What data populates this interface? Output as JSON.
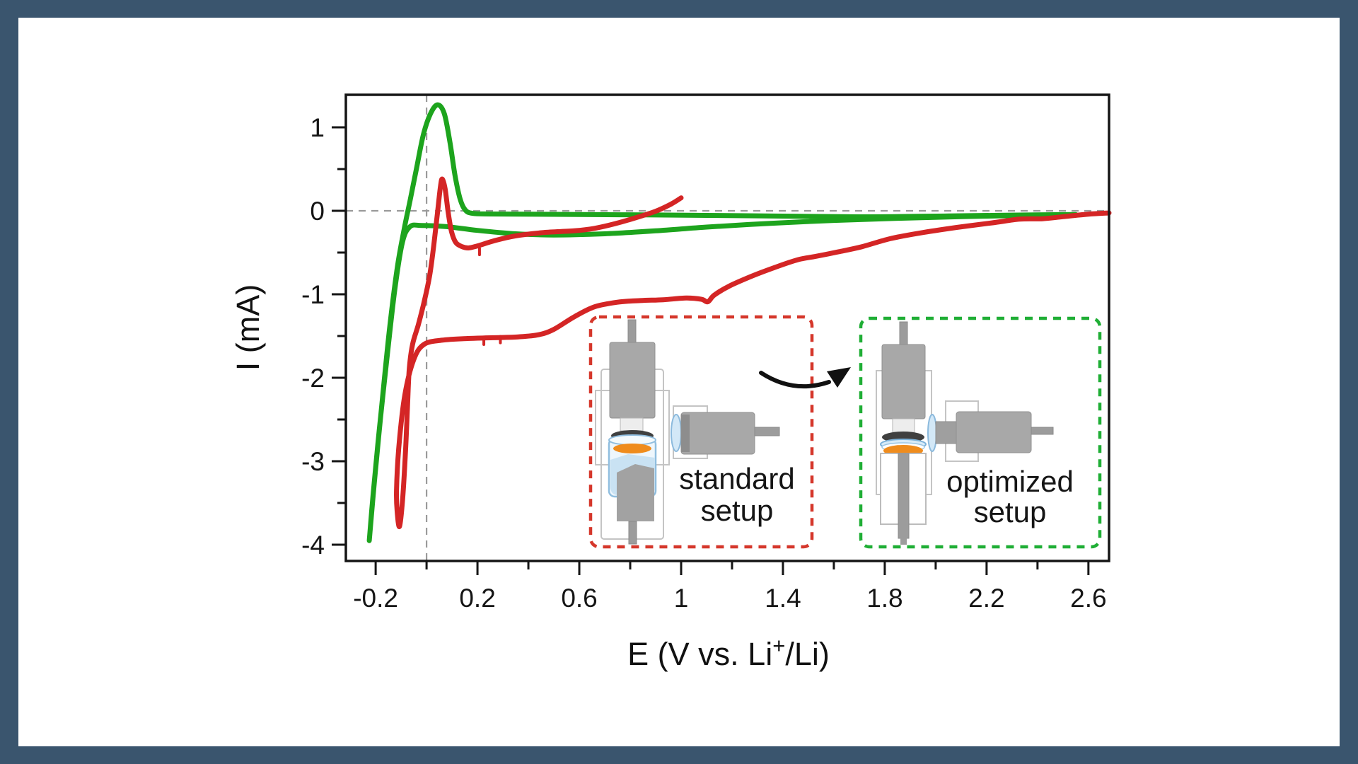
{
  "figure": {
    "frame_color": "#3a556e",
    "background": "#ffffff",
    "ylabel": "I (mA)",
    "xlabel_prefix": "E (V vs. Li",
    "xlabel_sup": "+",
    "xlabel_suffix": "/Li)"
  },
  "chart_data": {
    "type": "line",
    "title": "",
    "xlabel": "E (V vs. Li+/Li)",
    "ylabel": "I (mA)",
    "grid": "zero-lines only (dashed gray at E=0 and I=0)",
    "legend_position": "none (insets with dashed boxes act as legend)",
    "x_axis": {
      "min": -0.317,
      "max": 2.681,
      "major_ticks": [
        {
          "v": -0.2,
          "label": "-0.2"
        },
        {
          "v": 0.2,
          "label": "0.2"
        },
        {
          "v": 0.6,
          "label": "0.6"
        },
        {
          "v": 1.0,
          "label": "1"
        },
        {
          "v": 1.4,
          "label": "1.4"
        },
        {
          "v": 1.8,
          "label": "1.8"
        },
        {
          "v": 2.2,
          "label": "2.2"
        },
        {
          "v": 2.6,
          "label": "2.6"
        }
      ],
      "minor_ticks": [
        0.0,
        0.4,
        0.8,
        1.2,
        1.6,
        2.0,
        2.4
      ]
    },
    "y_axis": {
      "min": -4.195,
      "max": 1.39,
      "major_ticks": [
        {
          "v": 1,
          "label": "1"
        },
        {
          "v": 0,
          "label": "0"
        },
        {
          "v": -1,
          "label": "-1"
        },
        {
          "v": -2,
          "label": "-2"
        },
        {
          "v": -3,
          "label": "-3"
        },
        {
          "v": -4,
          "label": "-4"
        }
      ],
      "minor_ticks": [
        0.5,
        -0.5,
        -1.5,
        -2.5,
        -3.5
      ]
    },
    "zero_line_color": "#9a9a9a",
    "series": [
      {
        "name": "optimized setup",
        "color": "#1da41d",
        "points": [
          [
            2.55,
            -0.045
          ],
          [
            2.35,
            -0.055
          ],
          [
            2.1,
            -0.07
          ],
          [
            1.85,
            -0.09
          ],
          [
            1.6,
            -0.115
          ],
          [
            1.35,
            -0.15
          ],
          [
            1.1,
            -0.195
          ],
          [
            0.9,
            -0.24
          ],
          [
            0.7,
            -0.275
          ],
          [
            0.5,
            -0.29
          ],
          [
            0.35,
            -0.275
          ],
          [
            0.2,
            -0.235
          ],
          [
            0.08,
            -0.19
          ],
          [
            -0.02,
            -0.175
          ],
          [
            -0.065,
            -0.19
          ],
          [
            -0.095,
            -0.38
          ],
          [
            -0.125,
            -0.95
          ],
          [
            -0.155,
            -1.75
          ],
          [
            -0.185,
            -2.6
          ],
          [
            -0.21,
            -3.4
          ],
          [
            -0.225,
            -3.95
          ],
          [
            -0.205,
            -3.25
          ],
          [
            -0.175,
            -2.3
          ],
          [
            -0.145,
            -1.4
          ],
          [
            -0.115,
            -0.68
          ],
          [
            -0.088,
            -0.22
          ],
          [
            -0.065,
            0.12
          ],
          [
            -0.04,
            0.5
          ],
          [
            -0.012,
            0.92
          ],
          [
            0.018,
            1.18
          ],
          [
            0.045,
            1.27
          ],
          [
            0.07,
            1.16
          ],
          [
            0.092,
            0.82
          ],
          [
            0.112,
            0.42
          ],
          [
            0.132,
            0.14
          ],
          [
            0.152,
            0.01
          ],
          [
            0.18,
            -0.03
          ],
          [
            0.25,
            -0.038
          ],
          [
            0.5,
            -0.042
          ],
          [
            0.9,
            -0.05
          ],
          [
            1.3,
            -0.06
          ],
          [
            1.7,
            -0.072
          ],
          [
            2.05,
            -0.062
          ],
          [
            2.3,
            -0.052
          ],
          [
            2.55,
            -0.045
          ]
        ]
      },
      {
        "name": "standard setup",
        "color": "#d42525",
        "points": [
          [
            2.681,
            -0.025
          ],
          [
            2.6,
            -0.04
          ],
          [
            2.5,
            -0.07
          ],
          [
            2.42,
            -0.095
          ],
          [
            2.33,
            -0.1
          ],
          [
            2.22,
            -0.145
          ],
          [
            2.08,
            -0.2
          ],
          [
            1.94,
            -0.265
          ],
          [
            1.82,
            -0.335
          ],
          [
            1.71,
            -0.43
          ],
          [
            1.62,
            -0.49
          ],
          [
            1.53,
            -0.545
          ],
          [
            1.46,
            -0.585
          ],
          [
            1.38,
            -0.665
          ],
          [
            1.28,
            -0.78
          ],
          [
            1.19,
            -0.9
          ],
          [
            1.13,
            -1.01
          ],
          [
            1.105,
            -1.09
          ],
          [
            1.08,
            -1.06
          ],
          [
            1.02,
            -1.045
          ],
          [
            0.93,
            -1.065
          ],
          [
            0.84,
            -1.075
          ],
          [
            0.75,
            -1.095
          ],
          [
            0.66,
            -1.15
          ],
          [
            0.58,
            -1.27
          ],
          [
            0.5,
            -1.42
          ],
          [
            0.44,
            -1.485
          ],
          [
            0.36,
            -1.51
          ],
          [
            0.26,
            -1.52
          ],
          [
            0.16,
            -1.53
          ],
          [
            0.06,
            -1.55
          ],
          [
            -0.01,
            -1.6
          ],
          [
            -0.05,
            -1.78
          ],
          [
            -0.085,
            -2.2
          ],
          [
            -0.108,
            -2.8
          ],
          [
            -0.118,
            -3.35
          ],
          [
            -0.115,
            -3.62
          ],
          [
            -0.106,
            -3.78
          ],
          [
            -0.094,
            -3.45
          ],
          [
            -0.083,
            -2.9
          ],
          [
            -0.075,
            -2.35
          ],
          [
            -0.068,
            -1.9
          ],
          [
            -0.055,
            -1.6
          ],
          [
            -0.032,
            -1.36
          ],
          [
            -0.008,
            -1.07
          ],
          [
            0.012,
            -0.78
          ],
          [
            0.028,
            -0.42
          ],
          [
            0.043,
            -0.02
          ],
          [
            0.055,
            0.3
          ],
          [
            0.062,
            0.38
          ],
          [
            0.073,
            0.26
          ],
          [
            0.085,
            -0.02
          ],
          [
            0.098,
            -0.25
          ],
          [
            0.115,
            -0.38
          ],
          [
            0.14,
            -0.43
          ],
          [
            0.165,
            -0.445
          ],
          [
            0.2,
            -0.42
          ],
          [
            0.27,
            -0.355
          ],
          [
            0.35,
            -0.3
          ],
          [
            0.46,
            -0.26
          ],
          [
            0.58,
            -0.24
          ],
          [
            0.66,
            -0.21
          ],
          [
            0.74,
            -0.155
          ],
          [
            0.82,
            -0.085
          ],
          [
            0.9,
            -0.005
          ],
          [
            0.96,
            0.08
          ],
          [
            1.0,
            0.155
          ]
        ]
      }
    ],
    "artifact_ticks_series2": [
      [
        0.208,
        -0.45
      ],
      [
        0.225,
        -1.525
      ],
      [
        0.29,
        -1.505
      ]
    ]
  },
  "insets": [
    {
      "id": "standard",
      "label_line1": "standard",
      "label_line2": "setup",
      "border_color": "#d5372b"
    },
    {
      "id": "optimized",
      "label_line1": "optimized",
      "label_line2": "setup",
      "border_color": "#1fae35"
    }
  ],
  "cell_colors": {
    "body_gray": "#a8a8a8",
    "rod_gray": "#9c9c9c",
    "dark_disc": "#404040",
    "orange_disc": "#ef8c1d",
    "electrolyte_blue": "#c9e2f3",
    "glass_blue_stroke": "#8cbadd"
  }
}
